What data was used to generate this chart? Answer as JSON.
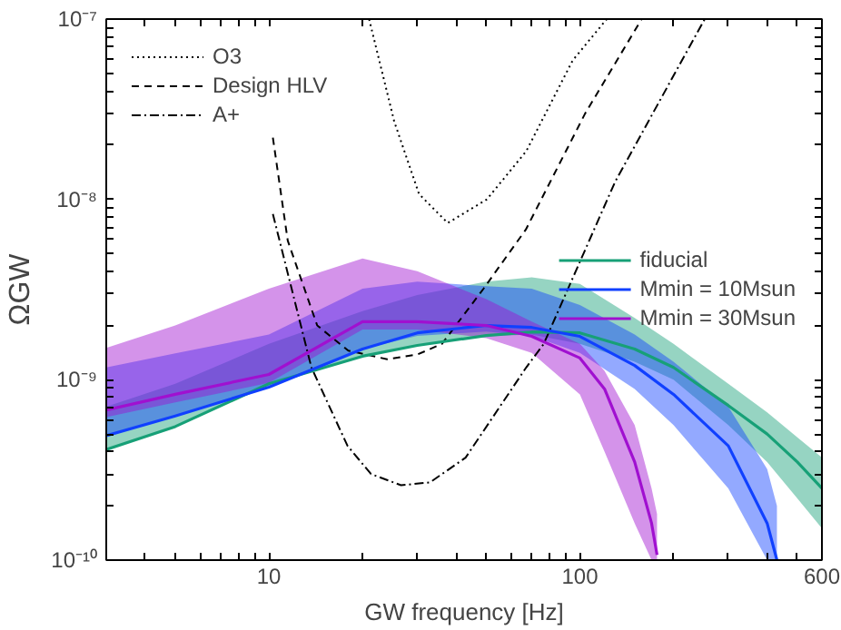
{
  "chart_data": {
    "type": "line",
    "xlabel": "GW frequency [Hz]",
    "ylabel": "ΩGW",
    "log": "xy",
    "xlim": [
      3,
      600
    ],
    "ylim": [
      1e-10,
      1e-07
    ],
    "xticks": [
      {
        "value": 3,
        "label": null
      },
      {
        "value": 4,
        "label": null
      },
      {
        "value": 5,
        "label": null
      },
      {
        "value": 6,
        "label": null
      },
      {
        "value": 7,
        "label": null
      },
      {
        "value": 8,
        "label": null
      },
      {
        "value": 9,
        "label": null
      },
      10,
      {
        "value": 20,
        "label": null
      },
      {
        "value": 30,
        "label": null
      },
      {
        "value": 40,
        "label": null
      },
      {
        "value": 50,
        "label": null
      },
      {
        "value": 60,
        "label": null
      },
      {
        "value": 70,
        "label": null
      },
      {
        "value": 80,
        "label": null
      },
      {
        "value": 90,
        "label": null
      },
      100,
      {
        "value": 200,
        "label": null
      },
      {
        "value": 300,
        "label": null
      },
      {
        "value": 400,
        "label": null
      },
      {
        "value": 500,
        "label": null
      },
      600
    ],
    "yticks": [
      {
        "value": 1e-10,
        "label": "10⁻¹⁰"
      },
      {
        "value": 2e-10,
        "label": null
      },
      {
        "value": 3e-10,
        "label": null
      },
      {
        "value": 4e-10,
        "label": null
      },
      {
        "value": 5e-10,
        "label": null
      },
      {
        "value": 6e-10,
        "label": null
      },
      {
        "value": 7e-10,
        "label": null
      },
      {
        "value": 8e-10,
        "label": null
      },
      {
        "value": 9e-10,
        "label": null
      },
      {
        "value": 1e-09,
        "label": "10⁻⁹"
      },
      {
        "value": 2e-09,
        "label": null
      },
      {
        "value": 3e-09,
        "label": null
      },
      {
        "value": 4e-09,
        "label": null
      },
      {
        "value": 5e-09,
        "label": null
      },
      {
        "value": 6e-09,
        "label": null
      },
      {
        "value": 7e-09,
        "label": null
      },
      {
        "value": 8e-09,
        "label": null
      },
      {
        "value": 9e-09,
        "label": null
      },
      {
        "value": 1e-08,
        "label": "10⁻⁸"
      },
      {
        "value": 2e-08,
        "label": null
      },
      {
        "value": 3e-08,
        "label": null
      },
      {
        "value": 4e-08,
        "label": null
      },
      {
        "value": 5e-08,
        "label": null
      },
      {
        "value": 6e-08,
        "label": null
      },
      {
        "value": 7e-08,
        "label": null
      },
      {
        "value": 8e-08,
        "label": null
      },
      {
        "value": 9e-08,
        "label": null
      },
      {
        "value": 1e-07,
        "label": "10⁻⁷"
      }
    ],
    "grid": false,
    "legend": [
      "top left",
      "right"
    ],
    "series": [
      {
        "name": "O3",
        "color": "#000000",
        "line_style": "dotted",
        "x": [
          21.0,
          25.3,
          30.4,
          37.6,
          50.2,
          67.2,
          94.8,
          122
        ],
        "values": [
          1e-07,
          2.7e-08,
          1.07e-08,
          7.4e-09,
          1e-08,
          1.85e-08,
          5.9e-08,
          1e-07
        ]
      },
      {
        "name": "Design HLV",
        "color": "#000000",
        "line_style": "dashed",
        "x": [
          10.3,
          11.5,
          14.3,
          18,
          24,
          30,
          36,
          49,
          67,
          104,
          158
        ],
        "values": [
          2.2e-08,
          5.9e-09,
          2e-09,
          1.45e-09,
          1.3e-09,
          1.38e-09,
          1.58e-09,
          3.2e-09,
          6.8e-09,
          3e-08,
          1e-07
        ]
      },
      {
        "name": "A+",
        "color": "#000000",
        "line_style": "dashdot",
        "x": [
          10.3,
          13.7,
          17.9,
          21.3,
          26.6,
          33,
          42.9,
          67.2,
          76.5,
          130,
          252
        ],
        "values": [
          8.3e-09,
          1.17e-09,
          4.3e-10,
          3e-10,
          2.6e-10,
          2.7e-10,
          3.7e-10,
          1.17e-09,
          1.58e-09,
          1.26e-08,
          1e-07
        ]
      },
      {
        "name": "fiducial",
        "color": "#17a077",
        "x": [
          3,
          5,
          10,
          20,
          30,
          50,
          70,
          100,
          150,
          200,
          300,
          400,
          500,
          600
        ],
        "values": [
          4.1e-10,
          5.5e-10,
          9.5e-10,
          1.35e-09,
          1.55e-09,
          1.76e-09,
          1.84e-09,
          1.82e-09,
          1.48e-09,
          1.17e-09,
          7.2e-10,
          5e-10,
          3.5e-10,
          2.5e-10
        ],
        "lower": [
          4.1e-10,
          5.5e-10,
          9.5e-10,
          1.35e-09,
          1.55e-09,
          1.74e-09,
          1.78e-09,
          1.58e-09,
          1.26e-09,
          1e-09,
          5.6e-10,
          3.5e-10,
          2.2e-10,
          1.5e-10
        ],
        "upper": [
          7.1e-10,
          9.5e-10,
          1.58e-09,
          2.4e-09,
          2.95e-09,
          3.5e-09,
          3.7e-09,
          3.4e-09,
          2.2e-09,
          1.58e-09,
          9.5e-10,
          6.6e-10,
          4.8e-10,
          3.7e-10
        ]
      },
      {
        "name": "Mmin = 10Msun",
        "color": "#1040ff",
        "x": [
          3,
          5,
          10,
          20,
          30,
          50,
          70,
          100,
          150,
          200,
          300,
          400,
          430
        ],
        "values": [
          4.9e-10,
          6.3e-10,
          9.1e-10,
          1.48e-09,
          1.82e-09,
          2e-09,
          1.95e-09,
          1.74e-09,
          1.2e-09,
          8.3e-10,
          4.3e-10,
          1.6e-10,
          1e-10
        ],
        "lower": [
          4.9e-10,
          6.3e-10,
          9.1e-10,
          1.48e-09,
          1.75e-09,
          1.85e-09,
          1.75e-09,
          1.41e-09,
          8.9e-10,
          5.6e-10,
          2.5e-10,
          1e-10,
          1e-10
        ],
        "upper": [
          1.17e-09,
          1.4e-09,
          1.78e-09,
          3.2e-09,
          3.5e-09,
          3.3e-09,
          3.2e-09,
          2.6e-09,
          1.78e-09,
          1.26e-09,
          7.1e-10,
          3.2e-10,
          2e-10
        ]
      },
      {
        "name": "Mmin = 30Msun",
        "color": "#a010d0",
        "x": [
          3,
          5,
          10,
          20,
          30,
          50,
          70,
          100,
          120,
          150,
          170,
          177
        ],
        "values": [
          6.8e-10,
          8.3e-10,
          1.07e-09,
          2.1e-09,
          2.1e-09,
          2e-09,
          1.74e-09,
          1.32e-09,
          8.9e-10,
          3.5e-10,
          1.6e-10,
          1.07e-10
        ],
        "lower": [
          6.2e-10,
          7.5e-10,
          9.6e-10,
          1.9e-09,
          1.9e-09,
          1.7e-09,
          1.41e-09,
          8.3e-10,
          4e-10,
          1.6e-10,
          1e-10,
          1e-10
        ],
        "upper": [
          1.5e-09,
          2e-09,
          3.2e-09,
          4.7e-09,
          4e-09,
          2.8e-09,
          2.1e-09,
          1.58e-09,
          1.12e-09,
          5.6e-10,
          2.5e-10,
          1.8e-10
        ]
      }
    ]
  }
}
